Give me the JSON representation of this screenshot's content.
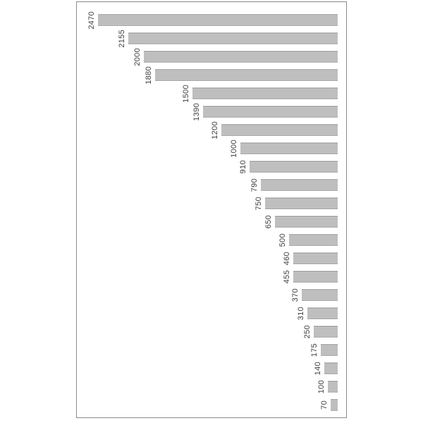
{
  "chart_data": {
    "type": "bar",
    "orientation": "horizontal-bars-right-aligned-sorted-descending",
    "values": [
      2470,
      2155,
      2000,
      1880,
      1500,
      1390,
      1200,
      1000,
      910,
      790,
      750,
      650,
      500,
      460,
      455,
      370,
      310,
      250,
      175,
      140,
      100,
      70
    ],
    "labels": [
      "2470",
      "2155",
      "2000",
      "1880",
      "1500",
      "1390",
      "1200",
      "1000",
      "910",
      "790",
      "750",
      "650",
      "500",
      "460",
      "455",
      "370",
      "310",
      "250",
      "175",
      "140",
      "100",
      "70"
    ],
    "title": "",
    "xlabel": "",
    "ylabel": "",
    "value_axis_estimated_range": [
      0,
      2700
    ],
    "bar_fill_pattern": "horizontal-stripes",
    "label_rotation_degrees": -90,
    "legend": "none",
    "grid": "none",
    "colors": {
      "background": "#ffffff",
      "frame_border": "#8a8a8a",
      "bar_stripe_dark": "#9f9f9f",
      "bar_stripe_light": "#dedede",
      "label_text": "#404040"
    }
  }
}
